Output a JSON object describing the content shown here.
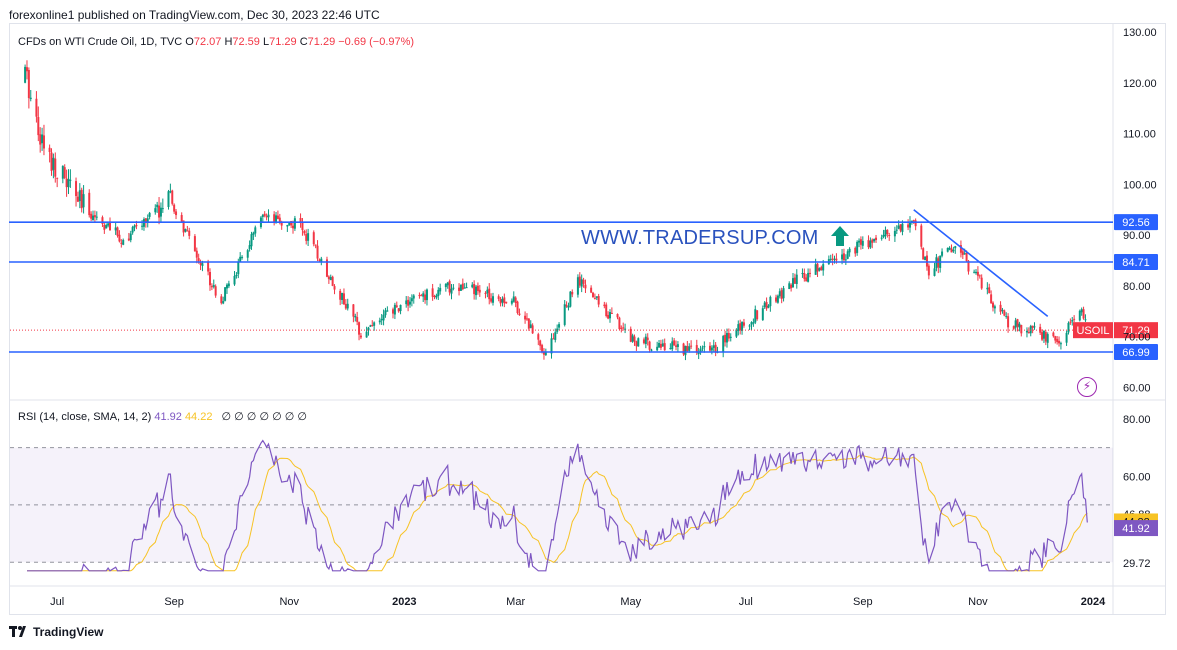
{
  "header": {
    "published": "forexonline1 published on TradingView.com, Dec 30, 2023 22:46 UTC"
  },
  "symbol": {
    "name": "CFDs on WTI Crude Oil, 1D, TVC",
    "o_label": "O",
    "o_value": "72.07",
    "h_label": "H",
    "h_value": "72.59",
    "l_label": "L",
    "l_value": "71.29",
    "c_label": "C",
    "c_value": "71.29",
    "change": "−0.69 (−0.97%)"
  },
  "rsi": {
    "label": "RSI (14, close, SMA, 14, 2)",
    "value": "41.92",
    "sma_value": "44.22",
    "nulls": "∅ ∅ ∅ ∅ ∅ ∅ ∅"
  },
  "watermark": "WWW.TRADERSUP.COM",
  "footer": {
    "brand": "TradingView"
  },
  "colors": {
    "up": "#089981",
    "down": "#f23645",
    "line": "#2962ff",
    "rsi": "#7e57c2",
    "rsi_ma": "#f7c325"
  },
  "icons": {
    "arrow": "up-arrow-icon",
    "lightning": "lightning-icon",
    "logo": "tradingview-logo-icon"
  },
  "chart_data": [
    {
      "type": "candlestick",
      "ylim": [
        57,
        130
      ],
      "price_ticks": [
        "130.00",
        "120.00",
        "110.00",
        "100.00",
        "90.00",
        "80.00",
        "70.00",
        "60.00"
      ],
      "x_ticks": [
        "Jul",
        "Sep",
        "Nov",
        "2023",
        "Mar",
        "May",
        "Jul",
        "Sep",
        "Nov",
        "2024"
      ],
      "horizontal_levels": [
        {
          "label": "92.56",
          "value": 92.56
        },
        {
          "label": "84.71",
          "value": 84.71
        },
        {
          "label": "66.99",
          "value": 66.99
        }
      ],
      "trendline": {
        "from": [
          "2023-09-28",
          95.0
        ],
        "to": [
          "2023-12-08",
          74.0
        ]
      },
      "last_price": {
        "label": "USOIL",
        "value": "71.29"
      },
      "closes_approx": [
        [
          "2022-06-14",
          122
        ],
        [
          "2022-06-24",
          107
        ],
        [
          "2022-07-14",
          96
        ],
        [
          "2022-08-05",
          89
        ],
        [
          "2022-08-29",
          97
        ],
        [
          "2022-09-26",
          77
        ],
        [
          "2022-10-17",
          93
        ],
        [
          "2022-11-07",
          92
        ],
        [
          "2022-12-09",
          71
        ],
        [
          "2023-01-03",
          77
        ],
        [
          "2023-01-27",
          80
        ],
        [
          "2023-02-28",
          77
        ],
        [
          "2023-03-17",
          67
        ],
        [
          "2023-04-03",
          81
        ],
        [
          "2023-05-04",
          69
        ],
        [
          "2023-06-12",
          67
        ],
        [
          "2023-07-28",
          81
        ],
        [
          "2023-08-10",
          84
        ],
        [
          "2023-09-27",
          93
        ],
        [
          "2023-10-06",
          83
        ],
        [
          "2023-10-20",
          88
        ],
        [
          "2023-11-16",
          73
        ],
        [
          "2023-12-13",
          69
        ],
        [
          "2023-12-26",
          75
        ],
        [
          "2023-12-29",
          71.29
        ]
      ]
    },
    {
      "type": "line",
      "title": "RSI",
      "ylim": [
        25,
        85
      ],
      "level_ticks": [
        "80.00",
        "60.00",
        "46.88",
        "29.72"
      ],
      "band": [
        30,
        70
      ],
      "series": [
        {
          "name": "RSI",
          "current": "41.92"
        },
        {
          "name": "SMA",
          "current": "44.22"
        }
      ]
    }
  ]
}
